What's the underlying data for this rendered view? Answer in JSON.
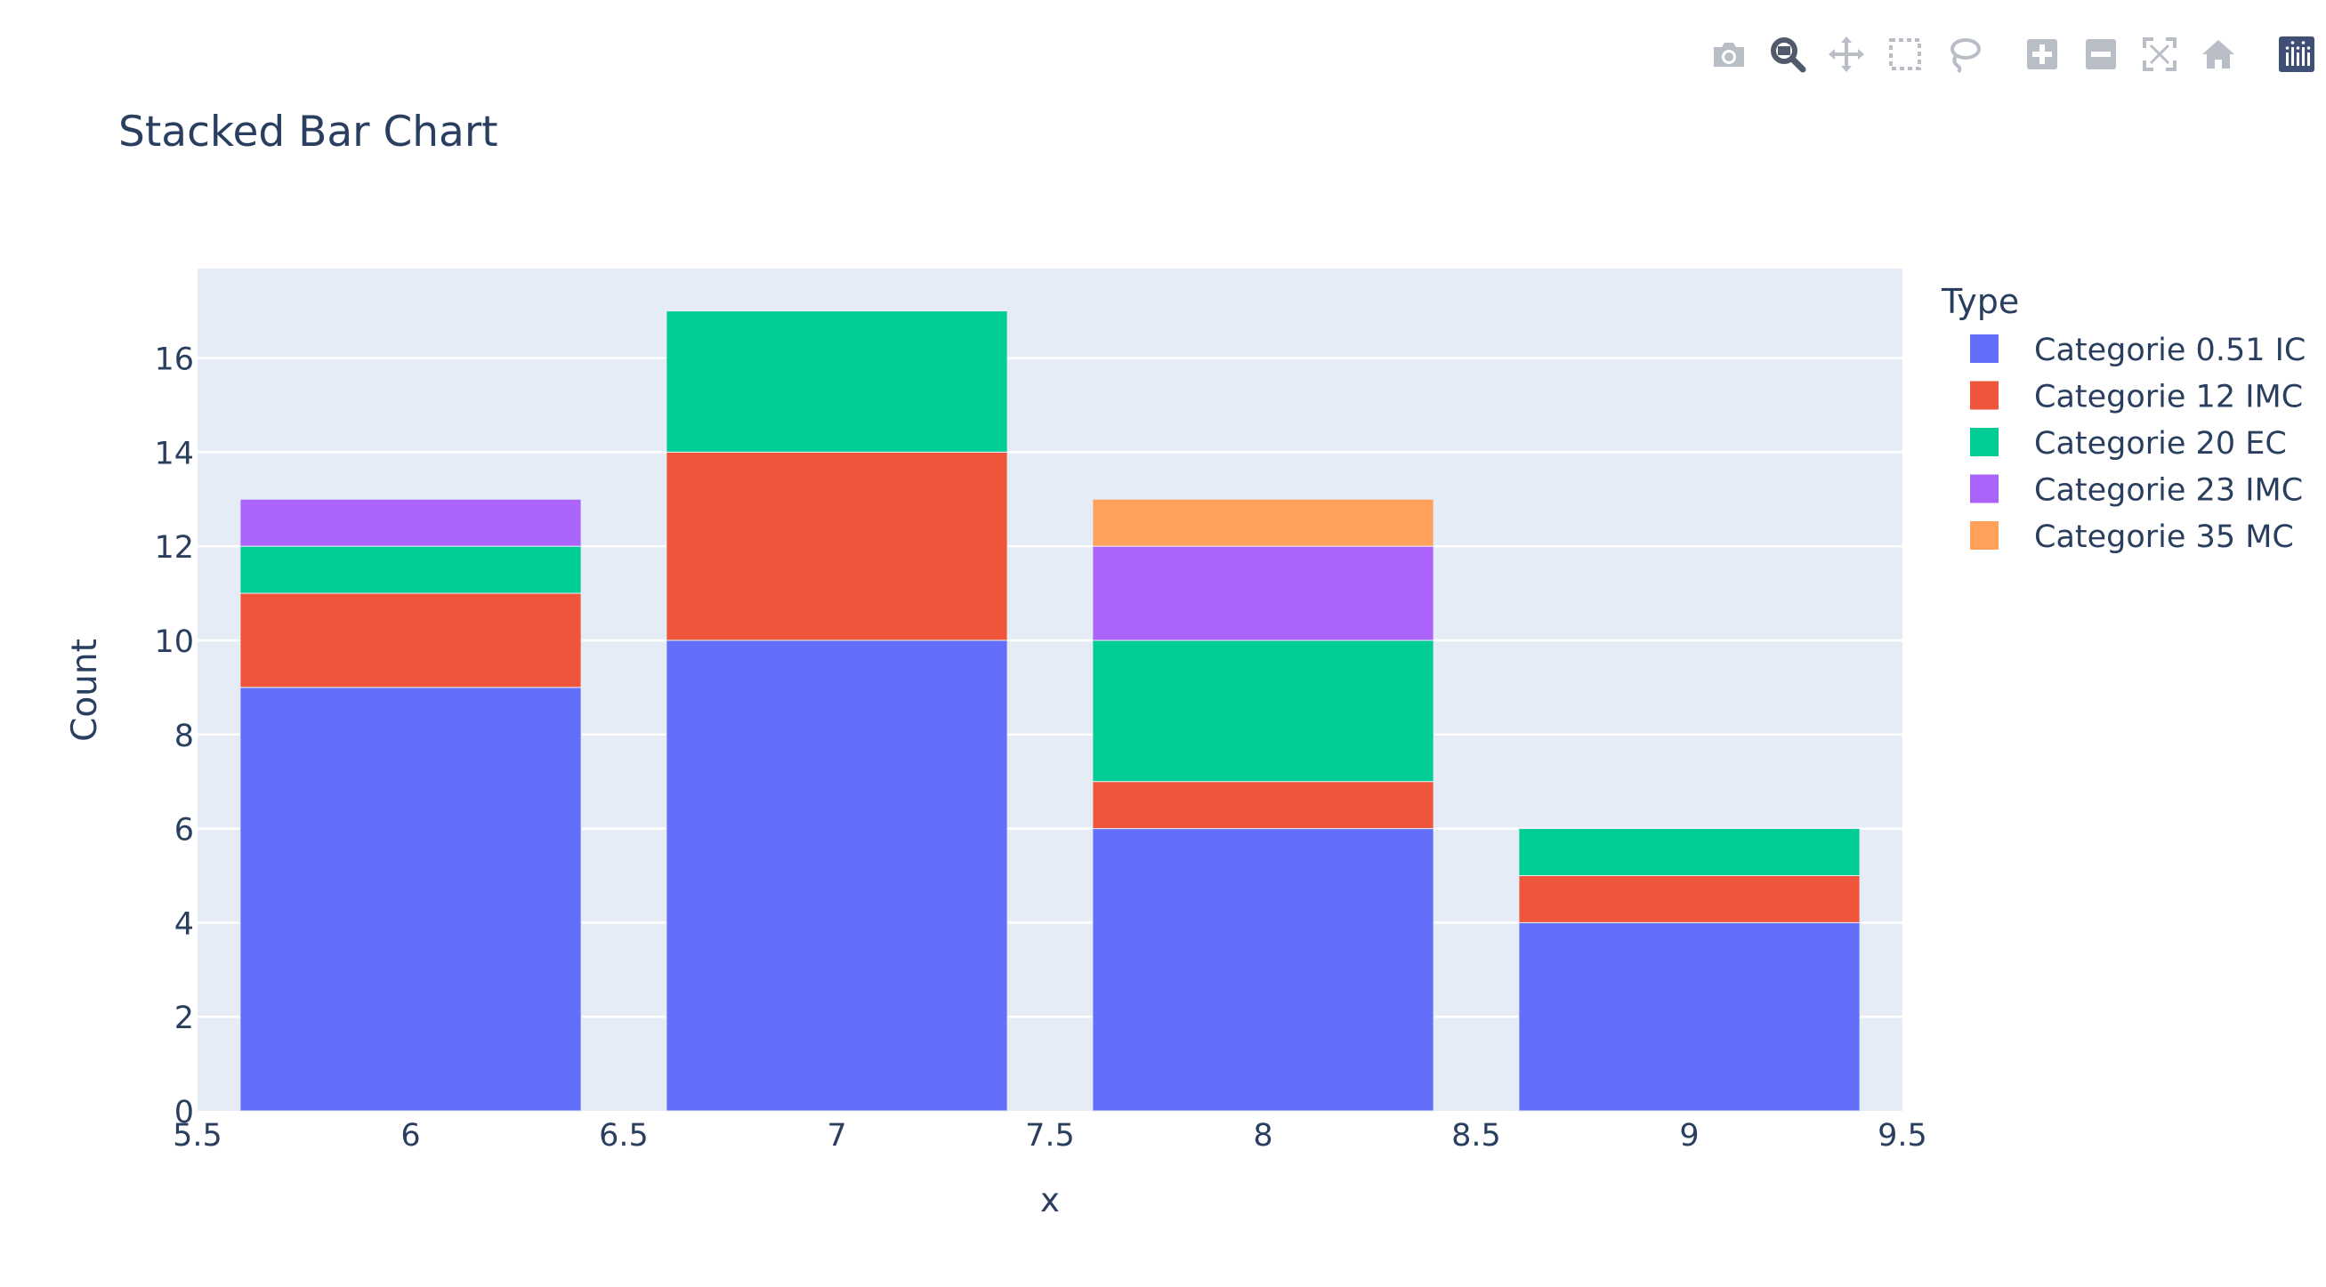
{
  "modebar": {
    "buttons": [
      {
        "icon": "camera-icon",
        "name": "download-plot-button"
      },
      {
        "icon": "zoom-icon",
        "name": "zoom-button",
        "active": true
      },
      {
        "icon": "pan-icon",
        "name": "pan-button"
      },
      {
        "icon": "box-select-icon",
        "name": "box-select-button"
      },
      {
        "icon": "lasso-select-icon",
        "name": "lasso-select-button"
      },
      {
        "icon": "zoom-in-icon",
        "name": "zoom-in-button"
      },
      {
        "icon": "zoom-out-icon",
        "name": "zoom-out-button"
      },
      {
        "icon": "autoscale-icon",
        "name": "autoscale-button"
      },
      {
        "icon": "home-icon",
        "name": "reset-axes-button"
      },
      {
        "icon": "plotly-logo-icon",
        "name": "plotly-logo"
      }
    ]
  },
  "chart_data": {
    "type": "bar",
    "barmode": "stack",
    "title": "Stacked Bar Chart",
    "xlabel": "x",
    "ylabel": "Count",
    "x": [
      6,
      7,
      8,
      9
    ],
    "xlim": [
      5.5,
      9.5
    ],
    "ylim": [
      0,
      17.9
    ],
    "xticks": [
      5.5,
      6,
      6.5,
      7,
      7.5,
      8,
      8.5,
      9,
      9.5
    ],
    "yticks": [
      0,
      2,
      4,
      6,
      8,
      10,
      12,
      14,
      16
    ],
    "grid": true,
    "legend_title": "Type",
    "legend_position": "right",
    "series": [
      {
        "name": "Categorie 0.51 IC",
        "color": "#636efa",
        "values": [
          9,
          10,
          6,
          4
        ]
      },
      {
        "name": "Categorie 12 IMC",
        "color": "#ef553b",
        "values": [
          2,
          4,
          1,
          1
        ]
      },
      {
        "name": "Categorie 20 EC",
        "color": "#00cc96",
        "values": [
          1,
          3,
          3,
          1
        ]
      },
      {
        "name": "Categorie 23 IMC",
        "color": "#ab63fa",
        "values": [
          1,
          0,
          2,
          0
        ]
      },
      {
        "name": "Categorie 35 MC",
        "color": "#ffa15a",
        "values": [
          0,
          0,
          1,
          0
        ]
      }
    ],
    "colors": {
      "plot_bg": "#e5ecf6",
      "grid": "#ffffff",
      "text": "#2a3f5f"
    }
  }
}
